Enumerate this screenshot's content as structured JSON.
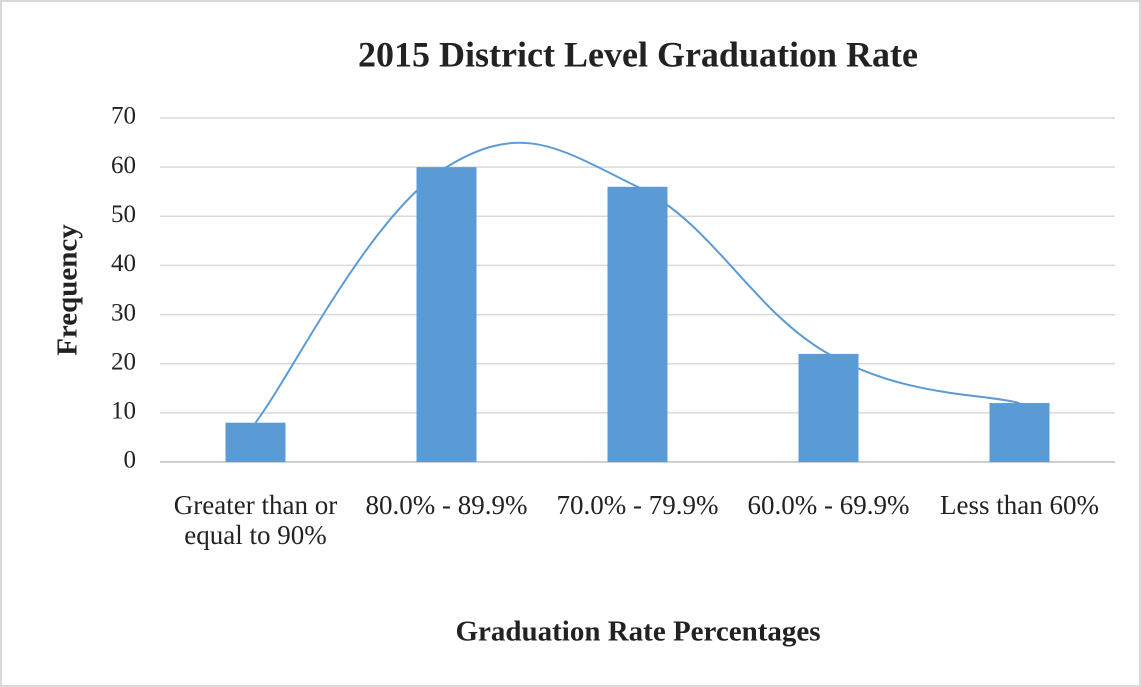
{
  "chart_data": {
    "type": "bar",
    "title": "2015 District Level Graduation Rate",
    "x_label": "Graduation Rate Percentages",
    "y_label": "Frequency",
    "categories": [
      "Greater than or equal to 90%",
      "80.0% - 89.9%",
      "70.0% - 79.9%",
      "60.0% - 69.9%",
      "Less than 60%"
    ],
    "values": [
      8,
      60,
      56,
      22,
      12
    ],
    "color": "#5b9bd5",
    "smooth_line": true,
    "ylim": [
      0,
      70
    ],
    "yticks": [
      0,
      10,
      20,
      30,
      40,
      50,
      60,
      70
    ],
    "grid": true
  }
}
